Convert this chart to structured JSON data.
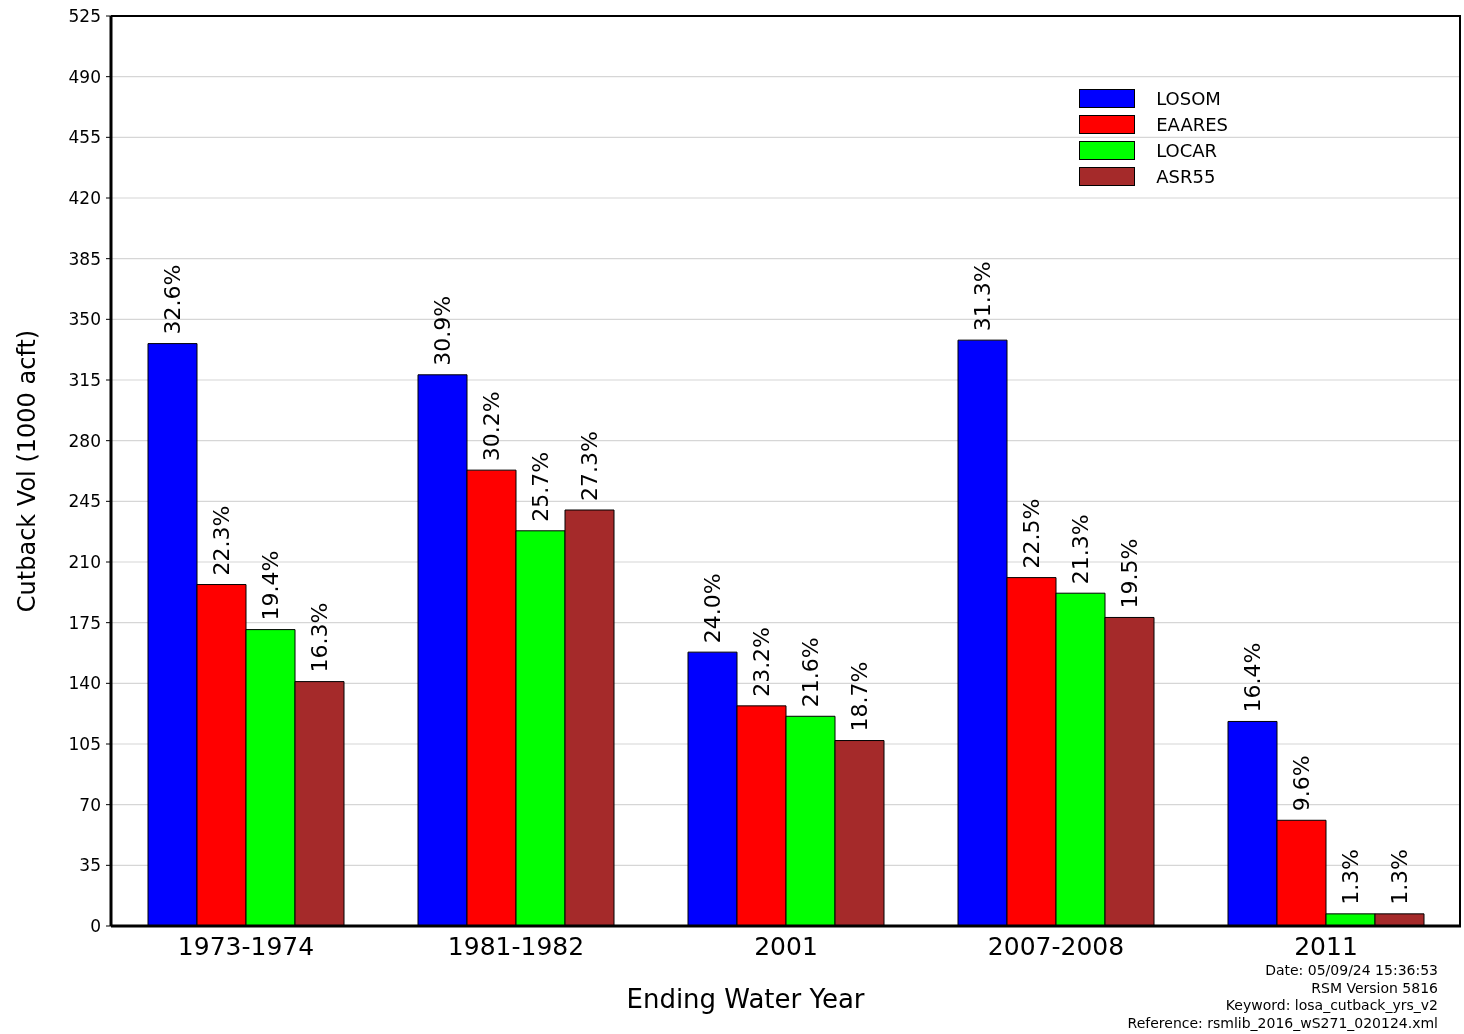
{
  "chart_data": {
    "type": "bar",
    "xlabel": "Ending Water Year",
    "ylabel": "Cutback Vol (1000 acft)",
    "categories": [
      "1973-1974",
      "1981-1982",
      "2001",
      "2007-2008",
      "2011"
    ],
    "series": [
      {
        "name": "LOSOM",
        "color": "#0000ff",
        "values": [
          336,
          318,
          158,
          338,
          118
        ]
      },
      {
        "name": "EAARES",
        "color": "#ff0000",
        "values": [
          197,
          263,
          127,
          201,
          61
        ]
      },
      {
        "name": "LOCAR",
        "color": "#00ff00",
        "values": [
          171,
          228,
          121,
          192,
          7
        ]
      },
      {
        "name": "ASR55",
        "color": "#a52a2a",
        "values": [
          141,
          240,
          107,
          178,
          7
        ]
      }
    ],
    "ylim": [
      0,
      525
    ],
    "yticks": [
      0,
      35,
      70,
      105,
      140,
      175,
      210,
      245,
      280,
      315,
      350,
      385,
      420,
      455,
      490,
      525
    ],
    "grid": "y",
    "legend": "top right",
    "annotations": [
      "32.6%",
      "22.3%",
      "19.4%",
      "16.3%",
      "30.9%",
      "30.2%",
      "25.7%",
      "27.3%",
      "24.0%",
      "23.2%",
      "21.6%",
      "18.7%",
      "31.3%",
      "22.5%",
      "21.3%",
      "19.5%",
      "16.4%",
      "9.6%",
      "1.3%",
      "1.3%",
      "Date: 05/09/24 15:36:53",
      "RSM Version 5816",
      "Keyword: losa_cutback_yrs_v2",
      "Reference: rsmlib_2016_wS271_020124.xml"
    ]
  }
}
